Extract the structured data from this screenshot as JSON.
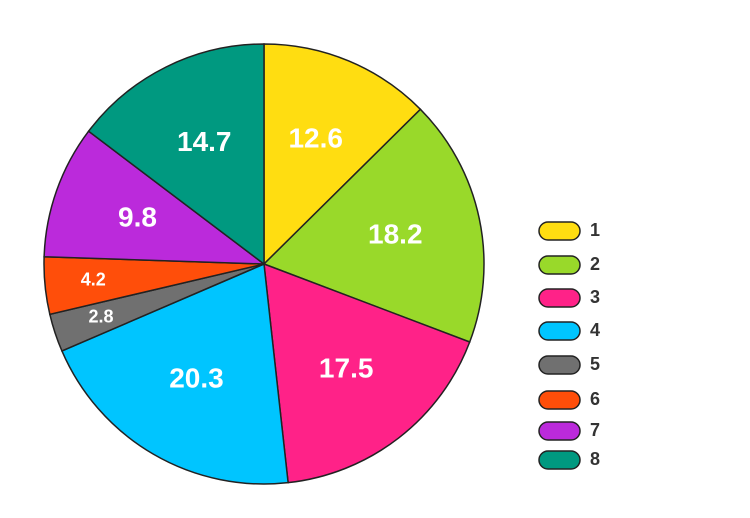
{
  "chart_data": {
    "type": "pie",
    "categories": [
      "1",
      "2",
      "3",
      "4",
      "5",
      "6",
      "7",
      "8"
    ],
    "values": [
      12.6,
      18.2,
      17.5,
      20.3,
      2.8,
      4.2,
      9.8,
      14.7
    ],
    "colors": [
      "#ffdd11",
      "#99d92a",
      "#ff2288",
      "#00c5ff",
      "#707070",
      "#ff4e0a",
      "#bb2adb",
      "#009980"
    ],
    "legend": "right"
  }
}
